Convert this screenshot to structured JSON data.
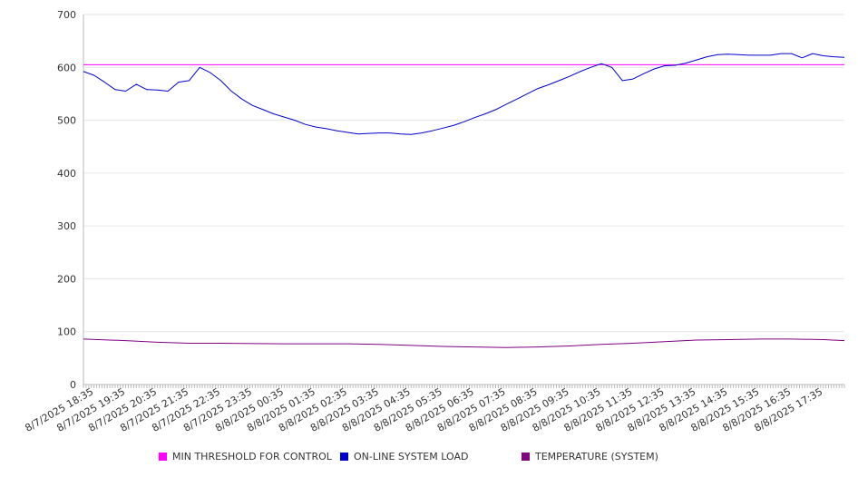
{
  "chart_data": {
    "type": "line",
    "title": "",
    "xlabel": "",
    "ylabel": "",
    "ylim": [
      0,
      700
    ],
    "y_ticks": [
      0,
      100,
      200,
      300,
      400,
      500,
      600,
      700
    ],
    "grid": true,
    "legend_position": "bottom",
    "x_tick_labels": [
      "8/7/2025 18:35",
      "8/7/2025 19:35",
      "8/7/2025 20:35",
      "8/7/2025 21:35",
      "8/7/2025 22:35",
      "8/7/2025 23:35",
      "8/8/2025 00:35",
      "8/8/2025 01:35",
      "8/8/2025 02:35",
      "8/8/2025 03:35",
      "8/8/2025 04:35",
      "8/8/2025 05:35",
      "8/8/2025 06:35",
      "8/8/2025 07:35",
      "8/8/2025 08:35",
      "8/8/2025 09:35",
      "8/8/2025 10:35",
      "8/8/2025 11:35",
      "8/8/2025 12:35",
      "8/8/2025 13:35",
      "8/8/2025 14:35",
      "8/8/2025 15:35",
      "8/8/2025 16:35",
      "8/8/2025 17:35"
    ],
    "series": [
      {
        "name": "MIN THRESHOLD FOR CONTROL",
        "color": "#ff00ff",
        "x": [
          "8/7/2025 18:15",
          "8/8/2025 18:15"
        ],
        "values": [
          605,
          605
        ]
      },
      {
        "name": "ON-LINE SYSTEM LOAD",
        "color": "#0000cc",
        "x": [
          "8/7/2025 18:15",
          "8/7/2025 18:35",
          "8/7/2025 18:55",
          "8/7/2025 19:15",
          "8/7/2025 19:35",
          "8/7/2025 19:55",
          "8/7/2025 20:15",
          "8/7/2025 20:35",
          "8/7/2025 20:55",
          "8/7/2025 21:15",
          "8/7/2025 21:35",
          "8/7/2025 21:55",
          "8/7/2025 22:15",
          "8/7/2025 22:35",
          "8/7/2025 22:55",
          "8/7/2025 23:15",
          "8/7/2025 23:35",
          "8/7/2025 23:55",
          "8/8/2025 00:15",
          "8/8/2025 00:35",
          "8/8/2025 00:55",
          "8/8/2025 01:15",
          "8/8/2025 01:35",
          "8/8/2025 01:55",
          "8/8/2025 02:15",
          "8/8/2025 02:35",
          "8/8/2025 02:55",
          "8/8/2025 03:15",
          "8/8/2025 03:35",
          "8/8/2025 03:55",
          "8/8/2025 04:15",
          "8/8/2025 04:35",
          "8/8/2025 04:55",
          "8/8/2025 05:15",
          "8/8/2025 05:35",
          "8/8/2025 05:55",
          "8/8/2025 06:15",
          "8/8/2025 06:35",
          "8/8/2025 06:55",
          "8/8/2025 07:15",
          "8/8/2025 07:35",
          "8/8/2025 07:55",
          "8/8/2025 08:15",
          "8/8/2025 08:35",
          "8/8/2025 08:55",
          "8/8/2025 09:15",
          "8/8/2025 09:35",
          "8/8/2025 09:55",
          "8/8/2025 10:15",
          "8/8/2025 10:35",
          "8/8/2025 10:55",
          "8/8/2025 11:15",
          "8/8/2025 11:35",
          "8/8/2025 11:55",
          "8/8/2025 12:15",
          "8/8/2025 12:35",
          "8/8/2025 12:55",
          "8/8/2025 13:15",
          "8/8/2025 13:35",
          "8/8/2025 13:55",
          "8/8/2025 14:15",
          "8/8/2025 14:35",
          "8/8/2025 14:55",
          "8/8/2025 15:15",
          "8/8/2025 15:35",
          "8/8/2025 15:55",
          "8/8/2025 16:15",
          "8/8/2025 16:35",
          "8/8/2025 16:55",
          "8/8/2025 17:15",
          "8/8/2025 17:35",
          "8/8/2025 17:55",
          "8/8/2025 18:15"
        ],
        "values": [
          592,
          585,
          572,
          558,
          555,
          568,
          558,
          557,
          555,
          572,
          575,
          600,
          590,
          575,
          555,
          540,
          528,
          520,
          512,
          506,
          500,
          492,
          487,
          484,
          480,
          477,
          474,
          475,
          476,
          476,
          474,
          473,
          476,
          480,
          485,
          490,
          497,
          505,
          512,
          520,
          530,
          540,
          550,
          560,
          567,
          575,
          583,
          592,
          600,
          607,
          600,
          575,
          578,
          588,
          597,
          603,
          604,
          608,
          614,
          620,
          624,
          625,
          624,
          623,
          623,
          623,
          626,
          626,
          618,
          626,
          622,
          620,
          619
        ]
      },
      {
        "name": "TEMPERATURE (SYSTEM)",
        "color": "#800080",
        "x": [
          "8/7/2025 18:15",
          "8/7/2025 19:35",
          "8/7/2025 20:35",
          "8/7/2025 21:35",
          "8/7/2025 22:35",
          "8/8/2025 00:35",
          "8/8/2025 02:35",
          "8/8/2025 03:35",
          "8/8/2025 04:35",
          "8/8/2025 05:35",
          "8/8/2025 06:35",
          "8/8/2025 07:35",
          "8/8/2025 08:35",
          "8/8/2025 09:35",
          "8/8/2025 10:35",
          "8/8/2025 11:35",
          "8/8/2025 12:35",
          "8/8/2025 13:35",
          "8/8/2025 14:35",
          "8/8/2025 15:35",
          "8/8/2025 16:35",
          "8/8/2025 17:35",
          "8/8/2025 18:15"
        ],
        "values": [
          86,
          83,
          80,
          78,
          78,
          77,
          77,
          76,
          74,
          72,
          71,
          70,
          71,
          73,
          76,
          78,
          81,
          84,
          85,
          86,
          86,
          85,
          83
        ]
      }
    ]
  },
  "legend": [
    {
      "label": "MIN THRESHOLD FOR CONTROL",
      "color": "#ff00ff"
    },
    {
      "label": "ON-LINE SYSTEM LOAD",
      "color": "#0000cc"
    },
    {
      "label": "TEMPERATURE (SYSTEM)",
      "color": "#800080"
    }
  ]
}
